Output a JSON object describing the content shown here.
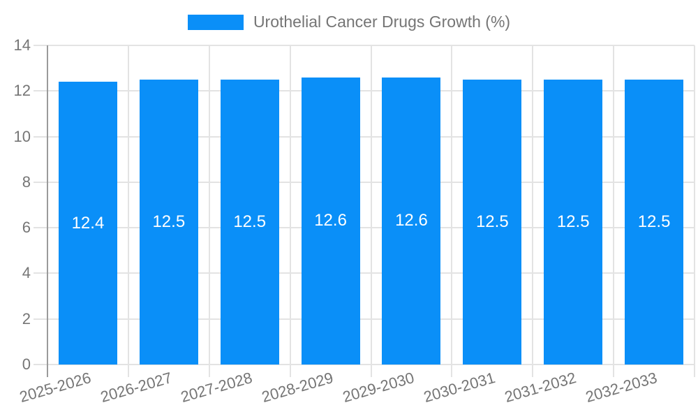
{
  "legend": {
    "label": "Urothelial Cancer Drugs Growth (%)"
  },
  "colors": {
    "bar": "#0a8ff8",
    "axis_text": "#757575",
    "grid": "#e3e3e3",
    "axis_line": "#9a9a9a",
    "value_label": "#ffffff",
    "background": "#ffffff"
  },
  "chart_data": {
    "type": "bar",
    "title": "Urothelial Cancer Drugs Growth (%)",
    "categories": [
      "2025-2026",
      "2026-2027",
      "2027-2028",
      "2028-2029",
      "2029-2030",
      "2030-2031",
      "2031-2032",
      "2032-2033"
    ],
    "values": [
      12.4,
      12.5,
      12.5,
      12.6,
      12.6,
      12.5,
      12.5,
      12.5
    ],
    "value_labels": [
      "12.4",
      "12.5",
      "12.5",
      "12.6",
      "12.6",
      "12.5",
      "12.5",
      "12.5"
    ],
    "xlabel": "",
    "ylabel": "",
    "ylim": [
      0,
      14
    ],
    "yticks": [
      0,
      2,
      4,
      6,
      8,
      10,
      12,
      14
    ],
    "grid": true,
    "legend_position": "top-center",
    "value_label_position": "inside-center",
    "x_tick_label_rotation_deg": -16
  }
}
